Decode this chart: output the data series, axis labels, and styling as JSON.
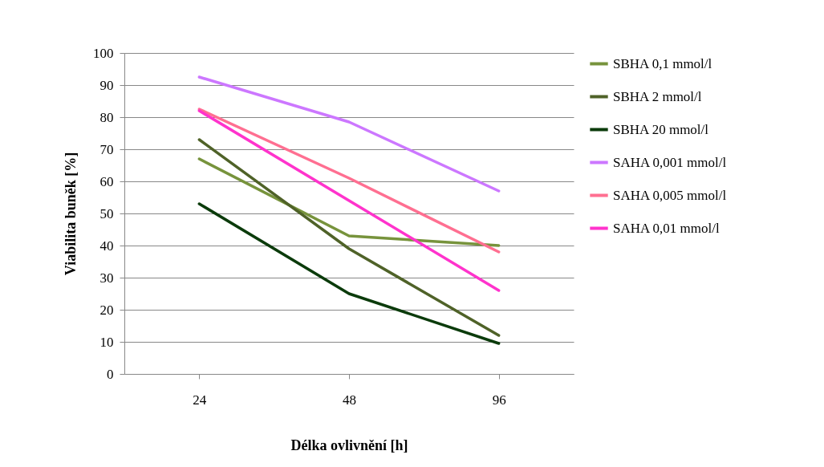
{
  "chart_data": {
    "type": "line",
    "xlabel": "Délka ovlivnění [h]",
    "ylabel": "Viabilita buněk [%]",
    "categories": [
      "24",
      "48",
      "96"
    ],
    "ylim": [
      0,
      100
    ],
    "yticks": [
      0,
      10,
      20,
      30,
      40,
      50,
      60,
      70,
      80,
      90,
      100
    ],
    "grid": "y",
    "legend": "right",
    "marker": "none",
    "line_style": "solid",
    "series": [
      {
        "name": "SBHA 0,1 mmol/l",
        "color": "#77933c",
        "values": [
          67,
          43,
          40
        ]
      },
      {
        "name": "SBHA 2 mmol/l",
        "color": "#4f6228",
        "values": [
          73,
          39,
          12
        ]
      },
      {
        "name": "SBHA 20 mmol/l",
        "color": "#0b3b0b",
        "values": [
          53,
          25,
          9.5
        ]
      },
      {
        "name": "SAHA 0,001 mmol/l",
        "color": "#cc77ff",
        "values": [
          92.5,
          78.5,
          57
        ]
      },
      {
        "name": "SAHA 0,005 mmol/l",
        "color": "#ff6f91",
        "values": [
          82.5,
          61,
          38
        ]
      },
      {
        "name": "SAHA 0,01 mmol/l",
        "color": "#ff33cc",
        "values": [
          82,
          54,
          26
        ]
      }
    ]
  }
}
